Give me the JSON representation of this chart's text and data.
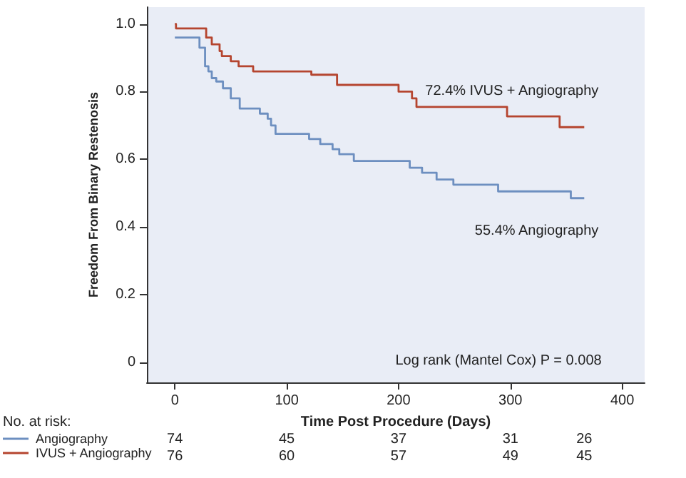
{
  "chart_data": {
    "type": "step",
    "xlabel": "Time Post Procedure (Days)",
    "ylabel": "Freedom From Binary Restenosis",
    "xlim": [
      -25,
      420
    ],
    "xticks": [
      0,
      100,
      200,
      300,
      400
    ],
    "ylim": [
      -0.06,
      1.05
    ],
    "yticks": [
      0,
      {
        "value": 0.2,
        "label": "0.2"
      },
      {
        "value": 0.4,
        "label": "0.4"
      },
      {
        "value": 0.6,
        "label": "0.6"
      },
      {
        "value": 0.8,
        "label": "0.8"
      },
      {
        "value": 1,
        "label": "1.0"
      }
    ],
    "grid": false,
    "legend": "bottom left",
    "marker": "none",
    "line_style": "solid",
    "series": [
      {
        "name": "Angiography",
        "color": "#6d8fc0",
        "x": [
          0,
          22,
          27,
          30,
          33,
          37,
          43,
          50,
          58,
          76,
          83,
          86,
          90,
          120,
          130,
          141,
          147,
          160,
          210,
          221,
          234,
          249,
          289,
          354,
          366
        ],
        "values": [
          0.96,
          0.93,
          0.875,
          0.86,
          0.84,
          0.83,
          0.81,
          0.78,
          0.75,
          0.735,
          0.72,
          0.7,
          0.675,
          0.66,
          0.645,
          0.63,
          0.615,
          0.595,
          0.575,
          0.56,
          0.54,
          0.525,
          0.505,
          0.485,
          0.485
        ]
      },
      {
        "name": "IVUS + Angiography",
        "color": "#b5452f",
        "x": [
          0,
          1,
          28,
          33,
          40,
          42,
          50,
          57,
          70,
          122,
          145,
          200,
          212,
          216,
          297,
          344,
          366
        ],
        "values": [
          1,
          0.987,
          0.96,
          0.94,
          0.92,
          0.905,
          0.89,
          0.875,
          0.86,
          0.85,
          0.82,
          0.8,
          0.78,
          0.755,
          0.727,
          0.695,
          0.695
        ]
      }
    ],
    "annotations": [
      "55.4% Angiography",
      "72.4% IVUS + Angiography",
      "Log rank (Mantel Cox) P = 0.008",
      "No. at risk:",
      "74 45 37 31 26",
      "76 60 57 49 45"
    ]
  }
}
